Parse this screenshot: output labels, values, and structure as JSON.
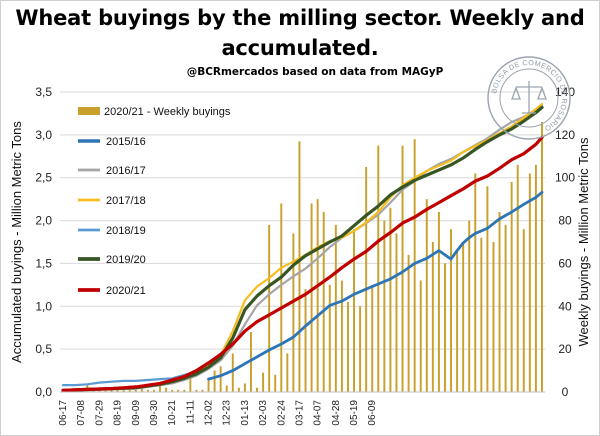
{
  "header": {
    "title_line1": "Wheat buyings by the milling sector. Weekly and",
    "title_line2": "accumulated.",
    "subtitle": "@BCRmercados based on data from MAGyP"
  },
  "seal": {
    "text": "BOLSA DE COMERCIO DE ROSARIO",
    "icon": "scales-of-justice-icon"
  },
  "colors": {
    "weekly": "#c8a02b",
    "2015/16": "#2e75b6",
    "2016/17": "#a5a5a5",
    "2017/18": "#f5bd1f",
    "2018/19": "#5b9bd5",
    "2019/20": "#375623",
    "2020/21": "#c00000"
  },
  "chart_data": {
    "type": "line",
    "title": "Wheat buyings by the milling sector. Weekly and accumulated.",
    "subtitle": "@BCRmercados based on data from MAGyP",
    "ylabel": "Accumulated buyings - Million Metric Tons",
    "y2label": "Weekly buyings - Million Metric Tons",
    "ylim": [
      0,
      3.5
    ],
    "y2lim": [
      0,
      140
    ],
    "yticks": [
      "0,0",
      "0,5",
      "1,0",
      "1,5",
      "2,0",
      "2,5",
      "3,0",
      "3,5"
    ],
    "y2ticks": [
      "0",
      "20",
      "40",
      "60",
      "80",
      "100",
      "120",
      "140"
    ],
    "grid": true,
    "legend_position": "top-left, inside plot",
    "x_tick_labels": [
      "06-17",
      "07-08",
      "07-29",
      "08-19",
      "09-09",
      "09-30",
      "10-21",
      "11-11",
      "12-02",
      "12-23",
      "01-13",
      "02-03",
      "02-24",
      "03-17",
      "04-07",
      "04-28",
      "05-19",
      "06-09"
    ],
    "bars": {
      "name": "2020/21 - Weekly buyings",
      "axis": "right",
      "values": [
        1,
        1,
        1,
        1,
        4,
        1,
        1,
        1,
        1,
        1,
        2,
        1,
        1,
        2,
        1,
        1,
        4,
        2,
        1,
        1,
        1,
        8,
        1,
        1,
        6,
        10,
        12,
        3,
        18,
        2,
        4,
        28,
        2,
        9,
        78,
        8,
        88,
        18,
        74,
        117,
        48,
        88,
        90,
        84,
        50,
        78,
        52,
        42,
        76,
        40,
        105,
        50,
        115,
        80,
        86,
        74,
        115,
        64,
        118,
        52,
        90,
        70,
        84,
        60,
        76,
        66,
        70,
        80,
        102,
        72,
        96,
        70,
        84,
        78,
        98,
        106,
        76,
        102,
        106,
        126
      ]
    },
    "series": [
      {
        "name": "2015/16",
        "x": [
          24,
          26,
          28,
          30,
          32,
          34,
          36,
          38,
          40,
          42,
          44,
          46,
          48,
          50,
          52,
          54,
          56,
          58,
          60,
          62,
          64,
          65,
          66,
          67,
          68,
          69,
          70,
          72,
          74,
          76,
          78,
          79
        ],
        "y": [
          0.15,
          0.19,
          0.25,
          0.33,
          0.41,
          0.49,
          0.56,
          0.64,
          0.77,
          0.89,
          1.01,
          1.06,
          1.14,
          1.2,
          1.26,
          1.32,
          1.4,
          1.5,
          1.56,
          1.65,
          1.55,
          1.65,
          1.74,
          1.8,
          1.85,
          1.88,
          1.91,
          2.02,
          2.1,
          2.19,
          2.27,
          2.33
        ]
      },
      {
        "name": "2016/17",
        "x": [
          0,
          4,
          8,
          12,
          16,
          18,
          20,
          22,
          24,
          26,
          28,
          30,
          32,
          34,
          36,
          38,
          40,
          42,
          44,
          46,
          48,
          50,
          52,
          54,
          56,
          58,
          60,
          62,
          64,
          66,
          68,
          70,
          72,
          74,
          76,
          78,
          79
        ],
        "y": [
          0.01,
          0.02,
          0.03,
          0.04,
          0.08,
          0.1,
          0.14,
          0.19,
          0.27,
          0.37,
          0.54,
          0.79,
          1.01,
          1.14,
          1.25,
          1.35,
          1.44,
          1.56,
          1.69,
          1.8,
          1.88,
          1.97,
          2.07,
          2.21,
          2.36,
          2.46,
          2.58,
          2.66,
          2.72,
          2.8,
          2.88,
          2.96,
          3.06,
          3.15,
          3.21,
          3.28,
          3.34
        ]
      },
      {
        "name": "2017/18",
        "x": [
          0,
          4,
          8,
          12,
          16,
          18,
          20,
          22,
          24,
          26,
          28,
          30,
          32,
          34,
          36,
          38,
          40,
          42,
          44,
          46,
          48,
          50,
          52,
          54,
          56,
          58,
          60,
          62,
          64,
          66,
          68,
          70,
          72,
          74,
          76,
          78,
          79
        ],
        "y": [
          0.02,
          0.03,
          0.04,
          0.05,
          0.1,
          0.12,
          0.16,
          0.22,
          0.3,
          0.43,
          0.71,
          1.07,
          1.23,
          1.33,
          1.45,
          1.52,
          1.6,
          1.69,
          1.76,
          1.8,
          1.88,
          1.98,
          2.1,
          2.27,
          2.41,
          2.5,
          2.58,
          2.64,
          2.7,
          2.8,
          2.87,
          2.94,
          3.02,
          3.1,
          3.2,
          3.3,
          3.36
        ]
      },
      {
        "name": "2018/19",
        "x": [
          0,
          2,
          4,
          6,
          8,
          10,
          12,
          14,
          16,
          18,
          20,
          22,
          24
        ],
        "y": [
          0.08,
          0.08,
          0.09,
          0.11,
          0.12,
          0.13,
          0.13,
          0.14,
          0.15,
          0.16,
          0.2,
          0.24,
          0.28
        ]
      },
      {
        "name": "2019/20",
        "x": [
          0,
          4,
          8,
          12,
          16,
          18,
          20,
          22,
          24,
          26,
          28,
          30,
          32,
          34,
          36,
          38,
          40,
          42,
          44,
          46,
          48,
          50,
          52,
          54,
          56,
          58,
          60,
          62,
          64,
          66,
          68,
          70,
          72,
          74,
          76,
          78,
          79
        ],
        "y": [
          0.02,
          0.03,
          0.04,
          0.05,
          0.09,
          0.12,
          0.16,
          0.21,
          0.29,
          0.4,
          0.63,
          0.96,
          1.12,
          1.24,
          1.34,
          1.48,
          1.59,
          1.67,
          1.75,
          1.82,
          1.94,
          2.06,
          2.17,
          2.3,
          2.39,
          2.47,
          2.53,
          2.59,
          2.65,
          2.73,
          2.83,
          2.92,
          3.0,
          3.07,
          3.16,
          3.26,
          3.32
        ]
      },
      {
        "name": "2020/21",
        "x": [
          0,
          4,
          8,
          12,
          16,
          18,
          20,
          22,
          24,
          26,
          28,
          30,
          32,
          34,
          36,
          38,
          40,
          42,
          44,
          46,
          48,
          50,
          52,
          54,
          56,
          58,
          60,
          62,
          64,
          66,
          68,
          70,
          72,
          74,
          76,
          78,
          79
        ],
        "y": [
          0.02,
          0.03,
          0.04,
          0.06,
          0.1,
          0.14,
          0.18,
          0.25,
          0.34,
          0.44,
          0.56,
          0.71,
          0.82,
          0.9,
          0.98,
          1.06,
          1.14,
          1.24,
          1.34,
          1.45,
          1.55,
          1.64,
          1.76,
          1.86,
          1.97,
          2.04,
          2.13,
          2.21,
          2.29,
          2.37,
          2.46,
          2.52,
          2.61,
          2.71,
          2.78,
          2.89,
          2.97
        ]
      }
    ]
  }
}
